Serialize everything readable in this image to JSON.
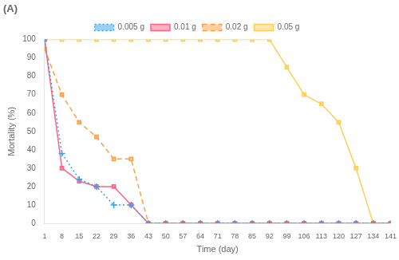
{
  "chart_data": {
    "type": "line",
    "title": "(A)",
    "xlabel": "Time (day)",
    "ylabel": "Mortality (%)",
    "x": [
      1,
      8,
      15,
      22,
      29,
      36,
      43,
      50,
      57,
      64,
      71,
      78,
      85,
      92,
      99,
      106,
      113,
      120,
      127,
      134,
      141
    ],
    "series": [
      {
        "name": "0.005 g",
        "marker": "plus",
        "line_style": "dotted",
        "values": [
          100,
          38,
          24,
          20,
          10,
          10,
          0,
          0,
          0,
          0,
          0,
          0,
          0,
          0,
          0,
          0,
          0,
          0,
          0,
          0,
          0
        ]
      },
      {
        "name": "0.01 g",
        "marker": "square",
        "line_style": "solid",
        "values": [
          100,
          30,
          23,
          20,
          20,
          10,
          0,
          0,
          0,
          0,
          0,
          0,
          0,
          0,
          0,
          0,
          0,
          0,
          0,
          0,
          0
        ]
      },
      {
        "name": "0.02 g",
        "marker": "square",
        "line_style": "dashed",
        "values": [
          95,
          70,
          55,
          47,
          35,
          35,
          0,
          0,
          0,
          0,
          0,
          0,
          0,
          0,
          0,
          0,
          0,
          0,
          0,
          0,
          0
        ]
      },
      {
        "name": "0.05 g",
        "marker": "square",
        "line_style": "solid",
        "values": [
          100,
          100,
          100,
          100,
          100,
          100,
          100,
          100,
          100,
          100,
          100,
          100,
          100,
          100,
          85,
          70,
          65,
          55,
          30,
          0,
          0
        ]
      }
    ],
    "xlim": [
      1,
      141
    ],
    "xticks": [
      1,
      8,
      15,
      22,
      29,
      36,
      43,
      50,
      57,
      64,
      71,
      78,
      85,
      92,
      99,
      106,
      113,
      120,
      127,
      134,
      141
    ],
    "ylim": [
      0,
      100
    ],
    "yticks": [
      0,
      10,
      20,
      30,
      40,
      50,
      60,
      70,
      80,
      90,
      100
    ],
    "grid": false,
    "legend": "top"
  }
}
